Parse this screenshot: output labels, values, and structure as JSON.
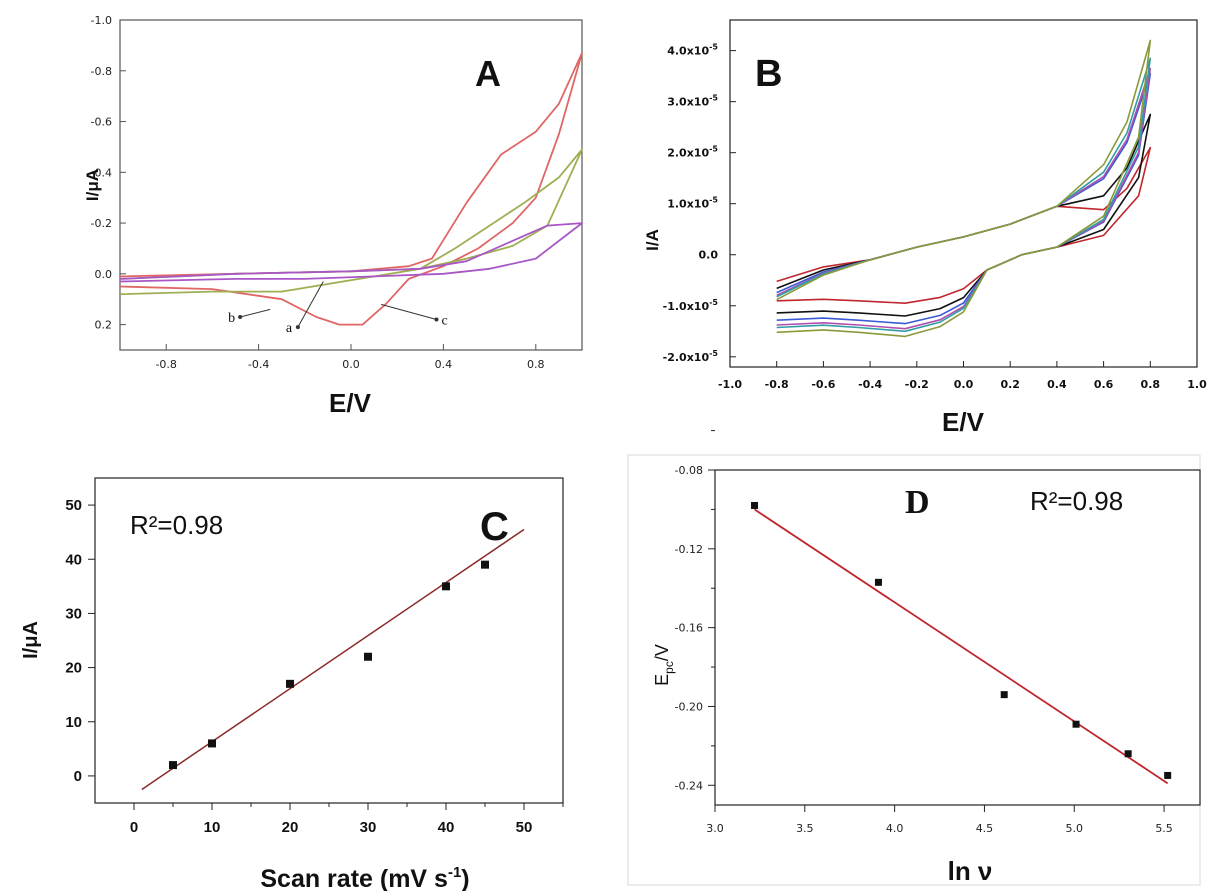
{
  "chart_data": [
    {
      "panel": "A",
      "type": "line",
      "xlabel": "E/V",
      "ylabel": "I/μA",
      "xlim": [
        -1.0,
        1.0
      ],
      "ylim": [
        0.3,
        -1.0
      ],
      "x_ticks": [
        "-0.8",
        "-0.4",
        "0.0",
        "0.4",
        "0.8"
      ],
      "x_tick_values": [
        -0.8,
        -0.4,
        0.0,
        0.4,
        0.8
      ],
      "y_ticks": [
        "-1.0",
        "-0.8",
        "-0.6",
        "-0.4",
        "-0.2",
        "0.0",
        "0.2"
      ],
      "y_tick_values": [
        -1.0,
        -0.8,
        -0.6,
        -0.4,
        -0.2,
        0.0,
        0.2
      ],
      "curve_labels": [
        {
          "text": "a",
          "arrow_from": [
            -0.23,
            0.21
          ],
          "arrow_to": [
            -0.12,
            0.03
          ]
        },
        {
          "text": "b",
          "arrow_from": [
            -0.48,
            0.17
          ],
          "arrow_to": [
            -0.35,
            0.14
          ]
        },
        {
          "text": "c",
          "arrow_from": [
            0.37,
            0.18
          ],
          "arrow_to": [
            0.13,
            0.12
          ]
        }
      ],
      "series": [
        {
          "color": "#e06666",
          "points": [
            [
              -1.0,
              0.05
            ],
            [
              -0.6,
              0.06
            ],
            [
              -0.3,
              0.1
            ],
            [
              -0.15,
              0.17
            ],
            [
              -0.05,
              0.2
            ],
            [
              0.05,
              0.2
            ],
            [
              0.15,
              0.12
            ],
            [
              0.25,
              0.02
            ],
            [
              0.4,
              -0.03
            ],
            [
              0.55,
              -0.1
            ],
            [
              0.7,
              -0.2
            ],
            [
              0.8,
              -0.3
            ],
            [
              0.9,
              -0.55
            ],
            [
              1.0,
              -0.87
            ],
            [
              0.9,
              -0.67
            ],
            [
              0.8,
              -0.56
            ],
            [
              0.65,
              -0.47
            ],
            [
              0.5,
              -0.28
            ],
            [
              0.35,
              -0.06
            ],
            [
              0.25,
              -0.03
            ],
            [
              0.0,
              -0.01
            ],
            [
              -0.5,
              0.0
            ],
            [
              -1.0,
              0.01
            ]
          ]
        },
        {
          "color": "#9fae52",
          "points": [
            [
              -1.0,
              0.08
            ],
            [
              -0.6,
              0.07
            ],
            [
              -0.3,
              0.07
            ],
            [
              -0.1,
              0.04
            ],
            [
              0.1,
              0.01
            ],
            [
              0.3,
              -0.02
            ],
            [
              0.5,
              -0.06
            ],
            [
              0.7,
              -0.11
            ],
            [
              0.85,
              -0.19
            ],
            [
              1.0,
              -0.49
            ],
            [
              0.9,
              -0.38
            ],
            [
              0.75,
              -0.28
            ],
            [
              0.6,
              -0.19
            ],
            [
              0.45,
              -0.1
            ],
            [
              0.3,
              -0.02
            ],
            [
              0.0,
              -0.01
            ],
            [
              -0.5,
              0.0
            ],
            [
              -1.0,
              0.02
            ]
          ]
        },
        {
          "color": "#a957c7",
          "points": [
            [
              -1.0,
              0.03
            ],
            [
              -0.5,
              0.02
            ],
            [
              -0.2,
              0.02
            ],
            [
              0.1,
              0.01
            ],
            [
              0.4,
              0.0
            ],
            [
              0.6,
              -0.02
            ],
            [
              0.8,
              -0.06
            ],
            [
              1.0,
              -0.2
            ],
            [
              0.85,
              -0.19
            ],
            [
              0.7,
              -0.13
            ],
            [
              0.5,
              -0.05
            ],
            [
              0.3,
              -0.02
            ],
            [
              0.0,
              -0.01
            ],
            [
              -0.5,
              0.0
            ],
            [
              -1.0,
              0.02
            ]
          ]
        }
      ]
    },
    {
      "panel": "B",
      "type": "line",
      "xlabel": "E/V",
      "ylabel": "I/A",
      "xlim": [
        -1.0,
        1.0
      ],
      "ylim": [
        -2.2e-05,
        4.6e-05
      ],
      "x_ticks": [
        "-1.0",
        "-0.8",
        "-0.6",
        "-0.4",
        "-0.2",
        "0.0",
        "0.2",
        "0.4",
        "0.6",
        "0.8",
        "1.0"
      ],
      "x_tick_values": [
        -1.0,
        -0.8,
        -0.6,
        -0.4,
        -0.2,
        0.0,
        0.2,
        0.4,
        0.6,
        0.8,
        1.0
      ],
      "y_tick_values": [
        -2e-05,
        -1e-05,
        0,
        1e-05,
        2e-05,
        3e-05,
        4e-05
      ],
      "y_ticks": [
        {
          "mantissa": "-2.0x10",
          "exp": "-5"
        },
        {
          "mantissa": "-1.0x10",
          "exp": "-5"
        },
        {
          "mantissa": "0.0",
          "exp": ""
        },
        {
          "mantissa": "1.0x10",
          "exp": "-5"
        },
        {
          "mantissa": "2.0x10",
          "exp": "-5"
        },
        {
          "mantissa": "3.0x10",
          "exp": "-5"
        },
        {
          "mantissa": "4.0x10",
          "exp": "-5"
        }
      ],
      "series": [
        {
          "color": "#c0272d",
          "upper": 2.1e-05,
          "low_peak": -9.5e-06
        },
        {
          "color": "#111111",
          "upper": 2.75e-05,
          "low_peak": -1.2e-05
        },
        {
          "color": "#3b5bd6",
          "upper": 3.55e-05,
          "low_peak": -1.35e-05
        },
        {
          "color": "#b04fb0",
          "upper": 3.65e-05,
          "low_peak": -1.45e-05
        },
        {
          "color": "#2f9fa5",
          "upper": 3.85e-05,
          "low_peak": -1.5e-05
        },
        {
          "color": "#8a9a3a",
          "upper": 4.2e-05,
          "low_peak": -1.6e-05
        }
      ]
    },
    {
      "panel": "C",
      "type": "scatter",
      "xlabel": "Scan rate (mV s",
      "xlabel_sup": "-1",
      "xlabel_end": ")",
      "ylabel": "I/μA",
      "annotation": "R²=0.98",
      "xlim": [
        -5,
        55
      ],
      "ylim": [
        -5,
        55
      ],
      "x_ticks": [
        "0",
        "10",
        "20",
        "30",
        "40",
        "50"
      ],
      "y_ticks": [
        "0",
        "10",
        "20",
        "30",
        "40",
        "50"
      ],
      "x": [
        5,
        10,
        20,
        30,
        40,
        45
      ],
      "y": [
        2,
        6,
        17,
        22,
        35,
        39
      ],
      "fit": {
        "x": [
          1,
          50
        ],
        "y": [
          -2.5,
          45.5
        ],
        "color": "#8b2a2a"
      }
    },
    {
      "panel": "D",
      "type": "scatter",
      "xlabel": "ln ν",
      "ylabel": "E",
      "ylabel_sub": "pc",
      "ylabel_end": "/V",
      "annotation": "R²=0.98",
      "xlim": [
        3.0,
        5.7
      ],
      "ylim": [
        -0.25,
        -0.08
      ],
      "x_ticks": [
        "3.0",
        "3.5",
        "4.0",
        "4.5",
        "5.0",
        "5.5"
      ],
      "y_ticks": [
        "-0.08",
        "-0.12",
        "-0.16",
        "-0.20",
        "-0.24"
      ],
      "x": [
        3.22,
        3.91,
        4.61,
        5.01,
        5.3,
        5.52
      ],
      "y": [
        -0.098,
        -0.137,
        -0.194,
        -0.209,
        -0.224,
        -0.235
      ],
      "fit": {
        "x": [
          3.22,
          5.52
        ],
        "y": [
          -0.1,
          -0.239
        ],
        "color": "#c0272d"
      }
    }
  ]
}
